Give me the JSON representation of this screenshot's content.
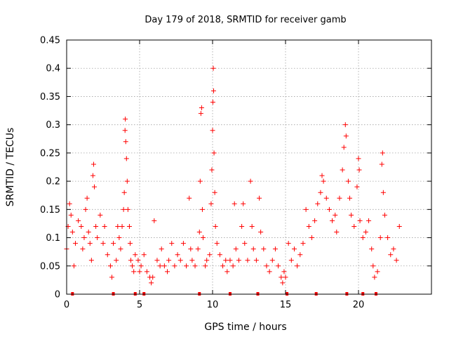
{
  "chart_data": {
    "type": "scatter",
    "title": "Day 179 of 2018, SRMTID for receiver gamb",
    "xlabel": "GPS time / hours",
    "ylabel": "SRMTID / TECUs",
    "xlim": [
      0,
      25
    ],
    "ylim": [
      0,
      0.45
    ],
    "grid": true,
    "x_ticks": [
      0,
      5,
      10,
      15,
      20
    ],
    "x_tick_labels": [
      "0",
      "5",
      "10",
      "15",
      "20"
    ],
    "y_ticks": [
      0,
      0.05,
      0.1,
      0.15,
      0.2,
      0.25,
      0.3,
      0.35,
      0.4,
      0.45
    ],
    "y_tick_labels": [
      "0",
      "0.05",
      "0.1",
      "0.15",
      "0.2",
      "0.25",
      "0.3",
      "0.35",
      "0.4",
      "0.45"
    ],
    "marker": "+",
    "color": "#ff0000",
    "series": [
      {
        "name": "SRMTID",
        "points": [
          [
            0.0,
            0.08
          ],
          [
            0.1,
            0.12
          ],
          [
            0.2,
            0.16
          ],
          [
            0.3,
            0.14
          ],
          [
            0.4,
            0.11
          ],
          [
            0.5,
            0.05
          ],
          [
            0.6,
            0.09
          ],
          [
            0.8,
            0.13
          ],
          [
            1.0,
            0.12
          ],
          [
            1.1,
            0.08
          ],
          [
            1.2,
            0.1
          ],
          [
            1.3,
            0.15
          ],
          [
            1.4,
            0.17
          ],
          [
            1.5,
            0.11
          ],
          [
            1.6,
            0.09
          ],
          [
            1.7,
            0.06
          ],
          [
            1.8,
            0.21
          ],
          [
            1.85,
            0.23
          ],
          [
            1.9,
            0.19
          ],
          [
            2.0,
            0.12
          ],
          [
            2.1,
            0.1
          ],
          [
            2.3,
            0.14
          ],
          [
            2.5,
            0.09
          ],
          [
            2.6,
            0.12
          ],
          [
            2.8,
            0.07
          ],
          [
            3.0,
            0.05
          ],
          [
            3.1,
            0.03
          ],
          [
            3.2,
            0.09
          ],
          [
            3.4,
            0.06
          ],
          [
            3.5,
            0.12
          ],
          [
            3.6,
            0.1
          ],
          [
            3.7,
            0.08
          ],
          [
            3.8,
            0.12
          ],
          [
            3.9,
            0.15
          ],
          [
            3.95,
            0.18
          ],
          [
            4.0,
            0.29
          ],
          [
            4.02,
            0.31
          ],
          [
            4.05,
            0.27
          ],
          [
            4.1,
            0.24
          ],
          [
            4.15,
            0.2
          ],
          [
            4.2,
            0.15
          ],
          [
            4.3,
            0.12
          ],
          [
            4.35,
            0.09
          ],
          [
            4.4,
            0.06
          ],
          [
            4.5,
            0.05
          ],
          [
            4.6,
            0.04
          ],
          [
            4.7,
            0.07
          ],
          [
            4.9,
            0.06
          ],
          [
            5.0,
            0.04
          ],
          [
            5.1,
            0.05
          ],
          [
            5.3,
            0.07
          ],
          [
            5.5,
            0.04
          ],
          [
            5.7,
            0.03
          ],
          [
            5.8,
            0.02
          ],
          [
            5.9,
            0.03
          ],
          [
            6.0,
            0.13
          ],
          [
            6.2,
            0.06
          ],
          [
            6.4,
            0.05
          ],
          [
            6.5,
            0.08
          ],
          [
            6.7,
            0.05
          ],
          [
            6.9,
            0.04
          ],
          [
            7.0,
            0.06
          ],
          [
            7.2,
            0.09
          ],
          [
            7.4,
            0.05
          ],
          [
            7.6,
            0.07
          ],
          [
            7.8,
            0.06
          ],
          [
            8.0,
            0.09
          ],
          [
            8.2,
            0.05
          ],
          [
            8.4,
            0.17
          ],
          [
            8.5,
            0.08
          ],
          [
            8.6,
            0.06
          ],
          [
            8.8,
            0.05
          ],
          [
            9.0,
            0.08
          ],
          [
            9.1,
            0.11
          ],
          [
            9.15,
            0.2
          ],
          [
            9.2,
            0.32
          ],
          [
            9.25,
            0.33
          ],
          [
            9.3,
            0.15
          ],
          [
            9.35,
            0.1
          ],
          [
            9.5,
            0.05
          ],
          [
            9.6,
            0.06
          ],
          [
            9.8,
            0.07
          ],
          [
            9.9,
            0.16
          ],
          [
            9.95,
            0.22
          ],
          [
            10.0,
            0.29
          ],
          [
            10.02,
            0.34
          ],
          [
            10.05,
            0.4
          ],
          [
            10.07,
            0.36
          ],
          [
            10.1,
            0.25
          ],
          [
            10.15,
            0.18
          ],
          [
            10.2,
            0.12
          ],
          [
            10.3,
            0.09
          ],
          [
            10.5,
            0.07
          ],
          [
            10.7,
            0.05
          ],
          [
            10.9,
            0.06
          ],
          [
            11.0,
            0.04
          ],
          [
            11.2,
            0.06
          ],
          [
            11.4,
            0.05
          ],
          [
            11.5,
            0.16
          ],
          [
            11.6,
            0.08
          ],
          [
            11.8,
            0.06
          ],
          [
            12.0,
            0.12
          ],
          [
            12.1,
            0.16
          ],
          [
            12.2,
            0.09
          ],
          [
            12.4,
            0.06
          ],
          [
            12.6,
            0.2
          ],
          [
            12.7,
            0.12
          ],
          [
            12.8,
            0.08
          ],
          [
            13.0,
            0.06
          ],
          [
            13.2,
            0.17
          ],
          [
            13.3,
            0.11
          ],
          [
            13.5,
            0.08
          ],
          [
            13.7,
            0.05
          ],
          [
            13.9,
            0.04
          ],
          [
            14.1,
            0.06
          ],
          [
            14.3,
            0.08
          ],
          [
            14.5,
            0.05
          ],
          [
            14.7,
            0.03
          ],
          [
            14.8,
            0.02
          ],
          [
            14.9,
            0.04
          ],
          [
            15.0,
            0.03
          ],
          [
            15.2,
            0.09
          ],
          [
            15.4,
            0.06
          ],
          [
            15.6,
            0.08
          ],
          [
            15.8,
            0.05
          ],
          [
            16.0,
            0.07
          ],
          [
            16.2,
            0.09
          ],
          [
            16.4,
            0.15
          ],
          [
            16.6,
            0.12
          ],
          [
            16.8,
            0.1
          ],
          [
            17.0,
            0.13
          ],
          [
            17.2,
            0.16
          ],
          [
            17.4,
            0.18
          ],
          [
            17.5,
            0.21
          ],
          [
            17.6,
            0.2
          ],
          [
            17.8,
            0.17
          ],
          [
            18.0,
            0.15
          ],
          [
            18.2,
            0.13
          ],
          [
            18.4,
            0.14
          ],
          [
            18.5,
            0.11
          ],
          [
            18.7,
            0.17
          ],
          [
            18.9,
            0.22
          ],
          [
            19.0,
            0.26
          ],
          [
            19.1,
            0.3
          ],
          [
            19.15,
            0.28
          ],
          [
            19.3,
            0.2
          ],
          [
            19.4,
            0.17
          ],
          [
            19.5,
            0.14
          ],
          [
            19.7,
            0.12
          ],
          [
            19.9,
            0.19
          ],
          [
            20.0,
            0.24
          ],
          [
            20.05,
            0.22
          ],
          [
            20.1,
            0.13
          ],
          [
            20.3,
            0.1
          ],
          [
            20.5,
            0.11
          ],
          [
            20.7,
            0.13
          ],
          [
            20.9,
            0.08
          ],
          [
            21.0,
            0.05
          ],
          [
            21.1,
            0.03
          ],
          [
            21.3,
            0.04
          ],
          [
            21.5,
            0.1
          ],
          [
            21.6,
            0.23
          ],
          [
            21.65,
            0.25
          ],
          [
            21.7,
            0.18
          ],
          [
            21.8,
            0.14
          ],
          [
            22.0,
            0.1
          ],
          [
            22.2,
            0.07
          ],
          [
            22.4,
            0.08
          ],
          [
            22.6,
            0.06
          ],
          [
            22.8,
            0.12
          ]
        ]
      }
    ],
    "zero_markers_x": [
      0.4,
      3.2,
      4.7,
      5.3,
      9.1,
      11.2,
      13.1,
      15.1,
      17.1,
      19.2,
      20.3,
      21.2
    ]
  }
}
